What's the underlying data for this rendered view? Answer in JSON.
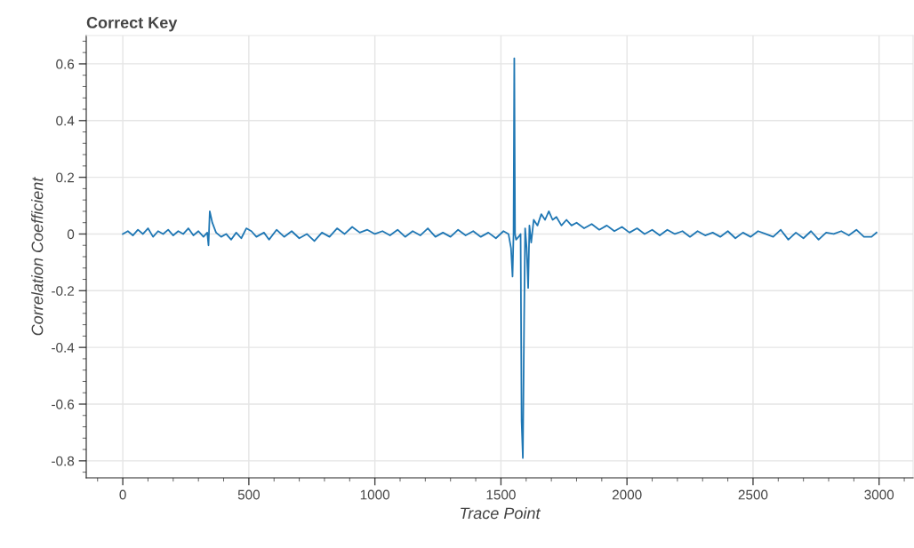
{
  "chart_data": {
    "type": "line",
    "title": "Correct Key",
    "xlabel": "Trace Point",
    "ylabel": "Correlation Coefficient",
    "xlim": [
      -145,
      3135
    ],
    "ylim": [
      -0.86,
      0.7
    ],
    "xticks": [
      0,
      500,
      1000,
      1500,
      2000,
      2500,
      3000
    ],
    "yticks": [
      -0.8,
      -0.6,
      -0.4,
      -0.2,
      0,
      0.2,
      0.4,
      0.6
    ],
    "grid": true,
    "marker": "none",
    "line_style": "solid",
    "series": [
      {
        "color": "#1f77b4",
        "x": [
          0,
          20,
          40,
          60,
          80,
          100,
          120,
          140,
          160,
          180,
          200,
          220,
          240,
          260,
          280,
          300,
          320,
          335,
          340,
          345,
          355,
          370,
          390,
          410,
          430,
          450,
          470,
          490,
          510,
          530,
          560,
          580,
          610,
          640,
          670,
          700,
          730,
          760,
          790,
          820,
          850,
          880,
          910,
          940,
          970,
          1000,
          1030,
          1060,
          1090,
          1120,
          1150,
          1180,
          1210,
          1240,
          1270,
          1300,
          1330,
          1360,
          1390,
          1420,
          1450,
          1480,
          1510,
          1530,
          1540,
          1546,
          1550,
          1553,
          1556,
          1560,
          1570,
          1578,
          1582,
          1587,
          1592,
          1596,
          1602,
          1608,
          1613,
          1620,
          1630,
          1645,
          1660,
          1675,
          1690,
          1705,
          1720,
          1740,
          1760,
          1780,
          1800,
          1830,
          1860,
          1890,
          1920,
          1950,
          1980,
          2010,
          2040,
          2070,
          2100,
          2130,
          2160,
          2190,
          2220,
          2250,
          2280,
          2310,
          2340,
          2370,
          2400,
          2430,
          2460,
          2490,
          2520,
          2550,
          2580,
          2610,
          2640,
          2670,
          2700,
          2730,
          2760,
          2790,
          2820,
          2850,
          2880,
          2910,
          2940,
          2970,
          2990
        ],
        "values": [
          0.0,
          0.01,
          -0.005,
          0.015,
          0.0,
          0.02,
          -0.01,
          0.01,
          0.0,
          0.015,
          -0.005,
          0.01,
          0.0,
          0.02,
          -0.005,
          0.01,
          -0.01,
          0.005,
          -0.04,
          0.08,
          0.04,
          0.005,
          -0.01,
          0.0,
          -0.02,
          0.005,
          -0.015,
          0.02,
          0.01,
          -0.01,
          0.005,
          -0.02,
          0.015,
          -0.01,
          0.01,
          -0.015,
          0.0,
          -0.025,
          0.005,
          -0.01,
          0.02,
          0.0,
          0.025,
          0.005,
          0.015,
          0.0,
          0.01,
          -0.005,
          0.015,
          -0.01,
          0.01,
          -0.005,
          0.02,
          -0.01,
          0.005,
          -0.01,
          0.015,
          -0.005,
          0.01,
          -0.01,
          0.005,
          -0.015,
          0.01,
          0.0,
          -0.05,
          -0.15,
          0.0,
          0.62,
          0.0,
          -0.02,
          -0.01,
          0.0,
          -0.66,
          -0.79,
          -0.3,
          0.02,
          -0.05,
          -0.19,
          0.03,
          -0.03,
          0.05,
          0.03,
          0.07,
          0.05,
          0.08,
          0.05,
          0.06,
          0.03,
          0.05,
          0.03,
          0.04,
          0.02,
          0.035,
          0.015,
          0.03,
          0.01,
          0.025,
          0.005,
          0.02,
          0.0,
          0.015,
          -0.005,
          0.015,
          0.0,
          0.01,
          -0.01,
          0.01,
          -0.005,
          0.005,
          -0.01,
          0.01,
          -0.015,
          0.005,
          -0.01,
          0.01,
          0.0,
          -0.01,
          0.015,
          -0.02,
          0.005,
          -0.015,
          0.01,
          -0.02,
          0.005,
          0.0,
          0.01,
          -0.005,
          0.015,
          -0.01,
          -0.01,
          0.005
        ]
      }
    ]
  }
}
